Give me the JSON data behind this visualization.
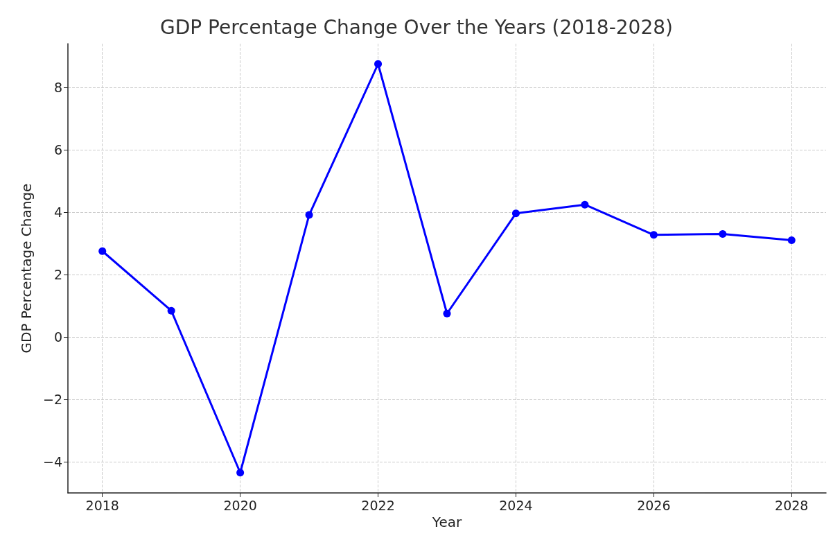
{
  "chart_data": {
    "type": "line",
    "title": "GDP Percentage Change Over the Years (2018-2028)",
    "xlabel": "Year",
    "ylabel": "GDP Percentage Change",
    "x": [
      2018,
      2019,
      2020,
      2021,
      2022,
      2023,
      2024,
      2025,
      2026,
      2027,
      2028
    ],
    "series": [
      {
        "color": "#0000ff",
        "values": [
          2.75,
          0.84,
          -4.35,
          3.91,
          8.75,
          0.75,
          3.96,
          4.24,
          3.27,
          3.3,
          3.1
        ]
      }
    ],
    "xlim": [
      2017.5,
      2028.5
    ],
    "xticks": [
      2018,
      2020,
      2022,
      2024,
      2026,
      2028
    ],
    "ylim": [
      -5,
      9.4
    ],
    "yticks": [
      {
        "value": -4,
        "label": "−4"
      },
      {
        "value": -2,
        "label": "−2"
      },
      0,
      2,
      4,
      6,
      8
    ],
    "grid": true,
    "marker": "circle",
    "line_style": "solid"
  }
}
